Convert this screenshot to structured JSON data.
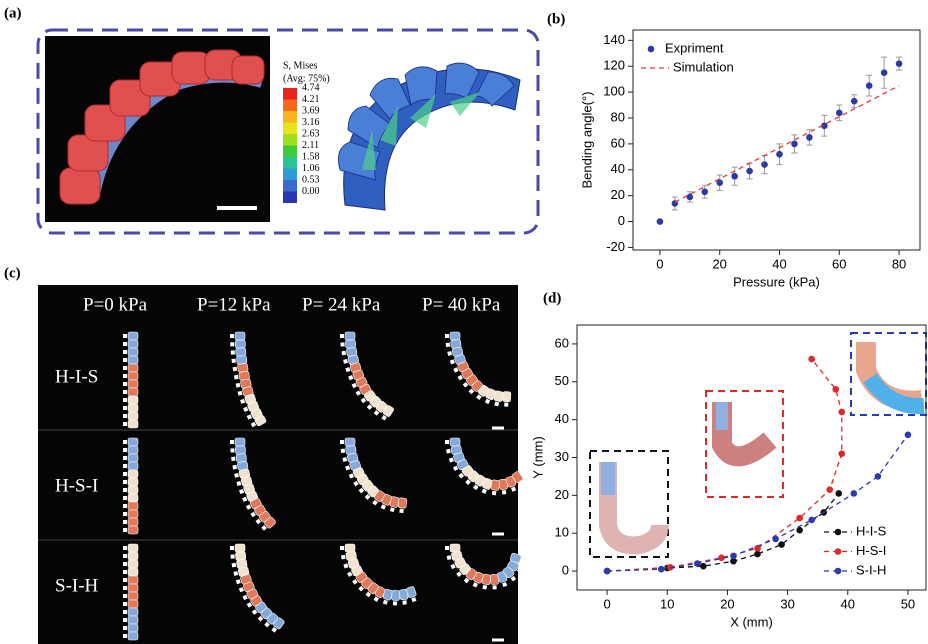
{
  "panel_labels": [
    "(a)",
    "(b)",
    "(c)",
    "(d)"
  ],
  "stress_legend": {
    "title": [
      "S, Mises",
      "(Avg: 75%)"
    ],
    "levels": [
      "4.74",
      "4.21",
      "3.69",
      "3.16",
      "2.63",
      "2.11",
      "1.58",
      "1.06",
      "0.53",
      "0.00"
    ]
  },
  "sequence_panel": {
    "pressures": [
      "P=0 kPa",
      "P=12 kPa",
      "P= 24 kPa",
      "P= 40 kPa"
    ],
    "rows": [
      "H-I-S",
      "H-S-I",
      "S-I-H"
    ]
  },
  "chart_data": [
    {
      "type": "scatter",
      "xlabel": "Pressure (kPa)",
      "ylabel": "Bending angle(°)",
      "xlim": [
        -9,
        87
      ],
      "ylim": [
        -22,
        148
      ],
      "xticks": [
        0,
        20,
        40,
        60,
        80
      ],
      "yticks": [
        -20,
        0,
        20,
        40,
        60,
        80,
        100,
        120,
        140
      ],
      "legend": "upper left",
      "series": [
        {
          "name": "Expriment",
          "color": "#2b3aa8",
          "mode": "markers",
          "x": [
            0,
            5,
            10,
            15,
            20,
            25,
            30,
            35,
            40,
            45,
            50,
            55,
            60,
            65,
            70,
            75,
            80
          ],
          "values": [
            0,
            14,
            19,
            23,
            30,
            35,
            39,
            44,
            52,
            60,
            65,
            74,
            84,
            93,
            105,
            115,
            122
          ],
          "errors": [
            1,
            5,
            4,
            5,
            6,
            7,
            6,
            7,
            8,
            7,
            6,
            8,
            6,
            5,
            8,
            12,
            5
          ]
        },
        {
          "name": "Simulation",
          "color": "#e03a3a",
          "mode": "dashed-line",
          "x": [
            5,
            80
          ],
          "values": [
            15,
            105
          ]
        }
      ]
    },
    {
      "type": "scatter",
      "xlabel": "X (mm)",
      "ylabel": "Y (mm)",
      "xlim": [
        -5,
        53
      ],
      "ylim": [
        -5,
        65
      ],
      "xticks": [
        0,
        10,
        20,
        30,
        40,
        50
      ],
      "yticks": [
        0,
        10,
        20,
        30,
        40,
        50,
        60
      ],
      "legend": "lower right",
      "series": [
        {
          "name": "H-I-S",
          "color": "#111111",
          "mode": "dashed-line-markers",
          "x": [
            0,
            10,
            16,
            21,
            25,
            29,
            32,
            36,
            38.5
          ],
          "values": [
            0,
            0.8,
            1.3,
            2.6,
            4.5,
            7,
            10.8,
            15.5,
            20.5
          ]
        },
        {
          "name": "H-S-I",
          "color": "#e02828",
          "mode": "dashed-line-markers",
          "x": [
            0,
            10.5,
            19,
            25,
            32,
            37,
            39,
            39,
            38,
            34
          ],
          "values": [
            0,
            1,
            3.5,
            6,
            14,
            21.5,
            31,
            42,
            48,
            56
          ]
        },
        {
          "name": "S-I-H",
          "color": "#2a3ab0",
          "mode": "dashed-line-markers",
          "x": [
            0,
            9,
            15,
            21,
            28,
            34,
            41,
            45,
            50
          ],
          "values": [
            0,
            0.5,
            2,
            4,
            8.5,
            13.5,
            20.5,
            25,
            36
          ]
        }
      ]
    }
  ]
}
